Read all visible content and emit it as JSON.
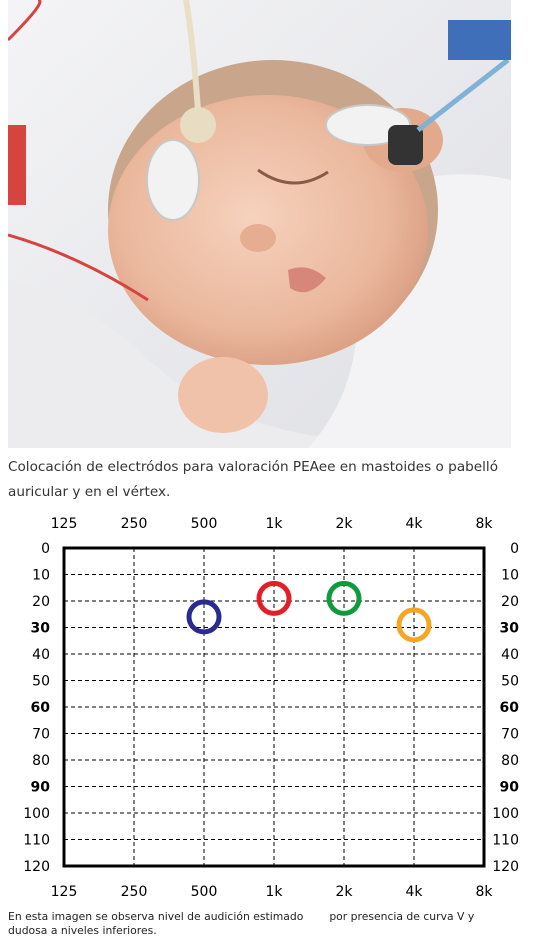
{
  "photo": {
    "subject": "sleeping-newborn-with-electrodes"
  },
  "caption": "Colocación de electródos para valoración PEAee en mastoides o pabelló auricular y en el vértex.",
  "chart_data": {
    "type": "scatter",
    "title": "",
    "xlabel": "",
    "ylabel": "",
    "x_ticks": [
      "125",
      "250",
      "500",
      "1k",
      "2k",
      "4k",
      "8k"
    ],
    "y_ticks": [
      0,
      10,
      20,
      30,
      40,
      50,
      60,
      70,
      80,
      90,
      100,
      110,
      120
    ],
    "y_bold_ticks": [
      30,
      60,
      90
    ],
    "ylim": [
      0,
      120
    ],
    "y_inverted": true,
    "grid": true,
    "points": [
      {
        "x": "500",
        "y": 26,
        "color": "#2b2b8f",
        "marker": "ring"
      },
      {
        "x": "1k",
        "y": 19,
        "color": "#e41e26",
        "marker": "ring"
      },
      {
        "x": "2k",
        "y": 19,
        "color": "#109a3e",
        "marker": "ring"
      },
      {
        "x": "4k",
        "y": 29,
        "color": "#f5a623",
        "marker": "ring"
      }
    ]
  },
  "footnote": {
    "part1": "En esta imagen se observa nivel de audición estimado",
    "part2": "por presencia de curva V y",
    "line2": "dudosa a niveles inferiores."
  }
}
